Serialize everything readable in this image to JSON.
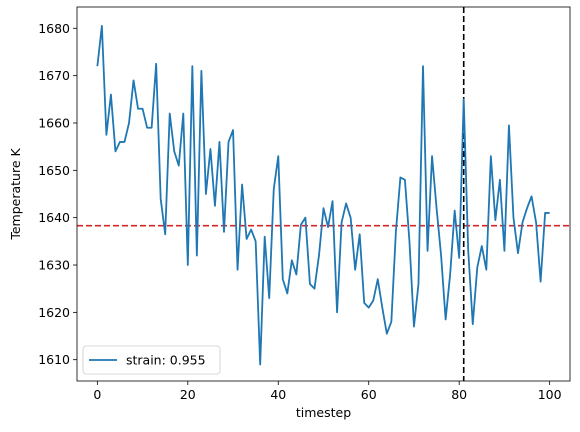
{
  "chart_data": {
    "type": "line",
    "xlabel": "timestep",
    "ylabel": "Temperature K",
    "xlim": [
      -4.5,
      104.5
    ],
    "ylim": [
      1605.5,
      1684.5
    ],
    "xticks": [
      0,
      20,
      40,
      60,
      80,
      100
    ],
    "yticks": [
      1610,
      1620,
      1630,
      1640,
      1650,
      1660,
      1670,
      1680
    ],
    "legend_position": "lower-left",
    "series": [
      {
        "name": "strain: 0.955",
        "color": "#1f77b4",
        "x": [
          0,
          1,
          2,
          3,
          4,
          5,
          6,
          7,
          8,
          9,
          10,
          11,
          12,
          13,
          14,
          15,
          16,
          17,
          18,
          19,
          20,
          21,
          22,
          23,
          24,
          25,
          26,
          27,
          28,
          29,
          30,
          31,
          32,
          33,
          34,
          35,
          36,
          37,
          38,
          39,
          40,
          41,
          42,
          43,
          44,
          45,
          46,
          47,
          48,
          49,
          50,
          51,
          52,
          53,
          54,
          55,
          56,
          57,
          58,
          59,
          60,
          61,
          62,
          63,
          64,
          65,
          66,
          67,
          68,
          69,
          70,
          71,
          72,
          73,
          74,
          75,
          76,
          77,
          78,
          79,
          80,
          81,
          82,
          83,
          84,
          85,
          86,
          87,
          88,
          89,
          90,
          91,
          92,
          93,
          94,
          95,
          96,
          97,
          98,
          99,
          100
        ],
        "y": [
          1672,
          1680.5,
          1657.5,
          1666,
          1654,
          1656,
          1656,
          1660,
          1669,
          1663,
          1663,
          1659,
          1659,
          1672.5,
          1644,
          1636.5,
          1662,
          1654,
          1651,
          1662,
          1630,
          1672,
          1632,
          1671,
          1645,
          1654.5,
          1642.5,
          1656,
          1637,
          1656,
          1658.5,
          1629,
          1647,
          1635.5,
          1637.5,
          1635,
          1609,
          1636,
          1623,
          1646,
          1653,
          1627,
          1624,
          1631,
          1628,
          1638.5,
          1640,
          1626,
          1625,
          1632,
          1642,
          1638,
          1643.5,
          1620,
          1639,
          1643,
          1640,
          1629,
          1636.5,
          1622,
          1621,
          1622.5,
          1627,
          1621,
          1615.5,
          1618,
          1637,
          1648.5,
          1648,
          1635,
          1617,
          1626,
          1672,
          1633,
          1653,
          1642,
          1632,
          1618.5,
          1628,
          1641.5,
          1631.5,
          1665,
          1633,
          1617.5,
          1629.5,
          1634,
          1629,
          1653,
          1639.5,
          1648,
          1633,
          1659.5,
          1640,
          1632.5,
          1639,
          1642,
          1644.5,
          1639,
          1626.5,
          1641,
          1641
        ]
      }
    ],
    "reference_lines": [
      {
        "orientation": "horizontal",
        "value": 1638.3,
        "color": "#d62728",
        "style": "dashed"
      },
      {
        "orientation": "vertical",
        "value": 81,
        "color": "#000000",
        "style": "dashed"
      }
    ]
  }
}
